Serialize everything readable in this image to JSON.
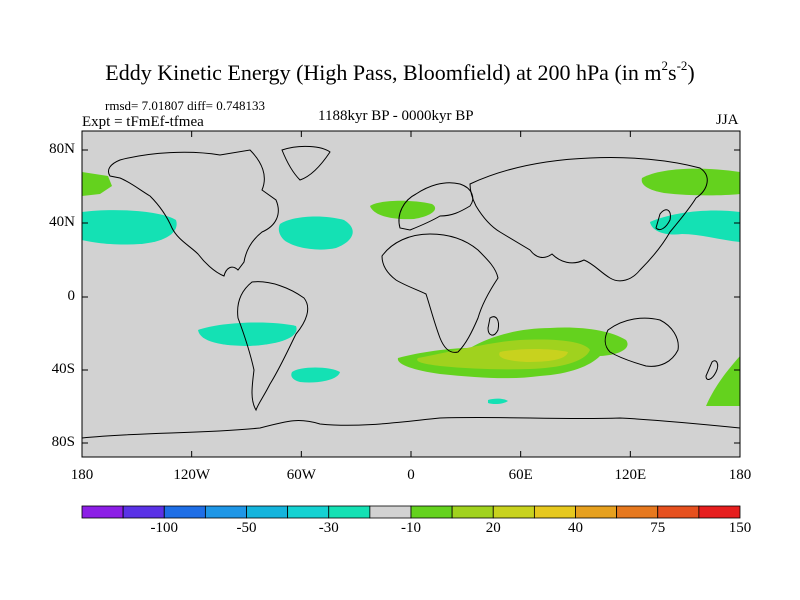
{
  "title": {
    "main": "Eddy Kinetic Energy (High Pass, Bloomfield) at 200 hPa (in m",
    "sup1": "2",
    "mid": "s",
    "sup2": "-2",
    "end": ")"
  },
  "stats": "rmsd= 7.01807 diff= 0.748133",
  "experiment": "Expt = tFmEf-tfmea",
  "period": "1188kyr BP - 0000kyr BP",
  "season": "JJA",
  "lat_labels": [
    "80N",
    "40N",
    "0",
    "40S",
    "80S"
  ],
  "lon_labels": [
    "180",
    "120W",
    "60W",
    "0",
    "60E",
    "120E",
    "180"
  ],
  "colorbar": {
    "colors": [
      "#8c1ee6",
      "#5a32e6",
      "#1e6ee6",
      "#1e96e6",
      "#14b4dc",
      "#14d2d2",
      "#14e1b4",
      "#d2d2d2",
      "#64d21e",
      "#a0d21e",
      "#c8d21e",
      "#e6c81e",
      "#e6a01e",
      "#e6781e",
      "#e6501e",
      "#e61e1e"
    ],
    "tick_labels": [
      "-100",
      "-50",
      "-30",
      "-10",
      "20",
      "40",
      "75",
      "150"
    ]
  },
  "colors": {
    "land_ocean_neutral": "#d2d2d2",
    "positive_green": "#64d21e",
    "positive_yellowgreen": "#a0d21e",
    "positive_yellow": "#c8d21e",
    "negative_cyan": "#14e1b4"
  }
}
